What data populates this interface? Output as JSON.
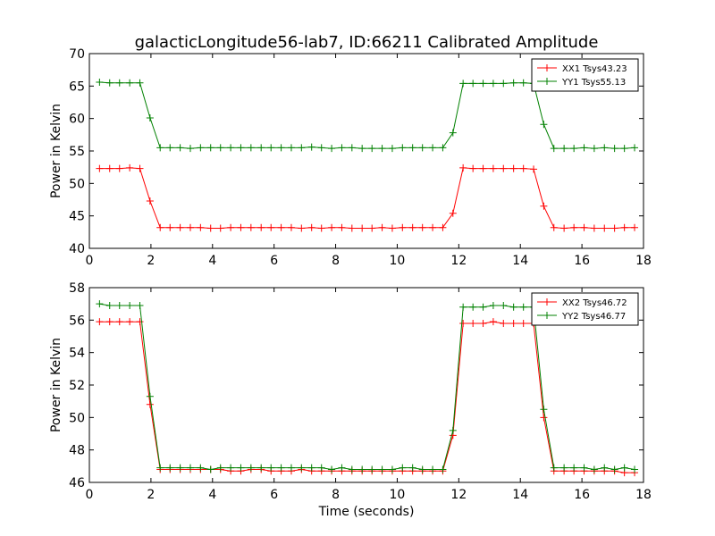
{
  "figure": {
    "title": "galacticLongitude56-lab7, ID:66211 Calibrated Amplitude",
    "xlabel": "Time (seconds)"
  },
  "chart_data": [
    {
      "type": "line",
      "ylabel": "Power in Kelvin",
      "xlim": [
        0,
        18
      ],
      "ylim": [
        40,
        70
      ],
      "xticks": [
        0,
        2,
        4,
        6,
        8,
        10,
        12,
        14,
        16,
        18
      ],
      "yticks": [
        40,
        45,
        50,
        55,
        60,
        65,
        70
      ],
      "legend_position": "top-right",
      "grid": false,
      "x": [
        0.33,
        0.66,
        0.98,
        1.31,
        1.64,
        1.97,
        2.3,
        2.62,
        2.95,
        3.28,
        3.61,
        3.94,
        4.26,
        4.59,
        4.92,
        5.25,
        5.58,
        5.9,
        6.23,
        6.56,
        6.89,
        7.22,
        7.54,
        7.87,
        8.2,
        8.53,
        8.86,
        9.18,
        9.51,
        9.84,
        10.17,
        10.5,
        10.82,
        11.15,
        11.48,
        11.81,
        12.14,
        12.46,
        12.79,
        13.12,
        13.45,
        13.78,
        14.1,
        14.43,
        14.76,
        15.09,
        15.42,
        15.74,
        16.07,
        16.4,
        16.73,
        17.06,
        17.38,
        17.71
      ],
      "series": [
        {
          "name": "XX1 Tsys43.23",
          "color": "#ff0000",
          "values": [
            52.3,
            52.3,
            52.3,
            52.4,
            52.3,
            47.3,
            43.2,
            43.2,
            43.2,
            43.2,
            43.2,
            43.1,
            43.1,
            43.2,
            43.2,
            43.2,
            43.2,
            43.2,
            43.2,
            43.2,
            43.1,
            43.2,
            43.1,
            43.2,
            43.2,
            43.1,
            43.1,
            43.1,
            43.2,
            43.1,
            43.2,
            43.2,
            43.2,
            43.2,
            43.2,
            45.4,
            52.4,
            52.3,
            52.3,
            52.3,
            52.3,
            52.3,
            52.3,
            52.2,
            46.5,
            43.2,
            43.1,
            43.2,
            43.2,
            43.1,
            43.1,
            43.1,
            43.2,
            43.2
          ]
        },
        {
          "name": "YY1 Tsys55.13",
          "color": "#008000",
          "values": [
            65.6,
            65.5,
            65.5,
            65.5,
            65.5,
            60.1,
            55.5,
            55.5,
            55.5,
            55.4,
            55.5,
            55.5,
            55.5,
            55.5,
            55.5,
            55.5,
            55.5,
            55.5,
            55.5,
            55.5,
            55.5,
            55.6,
            55.5,
            55.4,
            55.5,
            55.5,
            55.4,
            55.4,
            55.4,
            55.4,
            55.5,
            55.5,
            55.5,
            55.5,
            55.5,
            57.8,
            65.4,
            65.4,
            65.4,
            65.4,
            65.4,
            65.5,
            65.5,
            65.4,
            59.1,
            55.4,
            55.4,
            55.4,
            55.5,
            55.4,
            55.5,
            55.4,
            55.4,
            55.5
          ]
        }
      ]
    },
    {
      "type": "line",
      "ylabel": "Power in Kelvin",
      "xlim": [
        0,
        18
      ],
      "ylim": [
        46,
        58
      ],
      "xticks": [
        0,
        2,
        4,
        6,
        8,
        10,
        12,
        14,
        16,
        18
      ],
      "yticks": [
        46,
        48,
        50,
        52,
        54,
        56,
        58
      ],
      "legend_position": "top-right",
      "grid": false,
      "x": [
        0.33,
        0.66,
        0.98,
        1.31,
        1.64,
        1.97,
        2.3,
        2.62,
        2.95,
        3.28,
        3.61,
        3.94,
        4.26,
        4.59,
        4.92,
        5.25,
        5.58,
        5.9,
        6.23,
        6.56,
        6.89,
        7.22,
        7.54,
        7.87,
        8.2,
        8.53,
        8.86,
        9.18,
        9.51,
        9.84,
        10.17,
        10.5,
        10.82,
        11.15,
        11.48,
        11.81,
        12.14,
        12.46,
        12.79,
        13.12,
        13.45,
        13.78,
        14.1,
        14.43,
        14.76,
        15.09,
        15.42,
        15.74,
        16.07,
        16.4,
        16.73,
        17.06,
        17.38,
        17.71
      ],
      "series": [
        {
          "name": "XX2 Tsys46.72",
          "color": "#ff0000",
          "values": [
            55.9,
            55.9,
            55.9,
            55.9,
            55.9,
            50.8,
            46.8,
            46.8,
            46.8,
            46.8,
            46.8,
            46.8,
            46.8,
            46.7,
            46.7,
            46.8,
            46.8,
            46.7,
            46.7,
            46.7,
            46.8,
            46.7,
            46.7,
            46.7,
            46.7,
            46.7,
            46.7,
            46.7,
            46.7,
            46.7,
            46.7,
            46.7,
            46.7,
            46.7,
            46.7,
            48.9,
            55.8,
            55.8,
            55.8,
            55.9,
            55.8,
            55.8,
            55.8,
            55.8,
            50.0,
            46.7,
            46.7,
            46.7,
            46.7,
            46.7,
            46.7,
            46.7,
            46.6,
            46.6
          ]
        },
        {
          "name": "YY2 Tsys46.77",
          "color": "#008000",
          "values": [
            57.0,
            56.9,
            56.9,
            56.9,
            56.9,
            51.3,
            46.9,
            46.9,
            46.9,
            46.9,
            46.9,
            46.8,
            46.9,
            46.9,
            46.9,
            46.9,
            46.9,
            46.9,
            46.9,
            46.9,
            46.9,
            46.9,
            46.9,
            46.8,
            46.9,
            46.8,
            46.8,
            46.8,
            46.8,
            46.8,
            46.9,
            46.9,
            46.8,
            46.8,
            46.8,
            49.2,
            56.8,
            56.8,
            56.8,
            56.9,
            56.9,
            56.8,
            56.8,
            56.8,
            50.5,
            46.9,
            46.9,
            46.9,
            46.9,
            46.8,
            46.9,
            46.8,
            46.9,
            46.8
          ]
        }
      ]
    }
  ]
}
